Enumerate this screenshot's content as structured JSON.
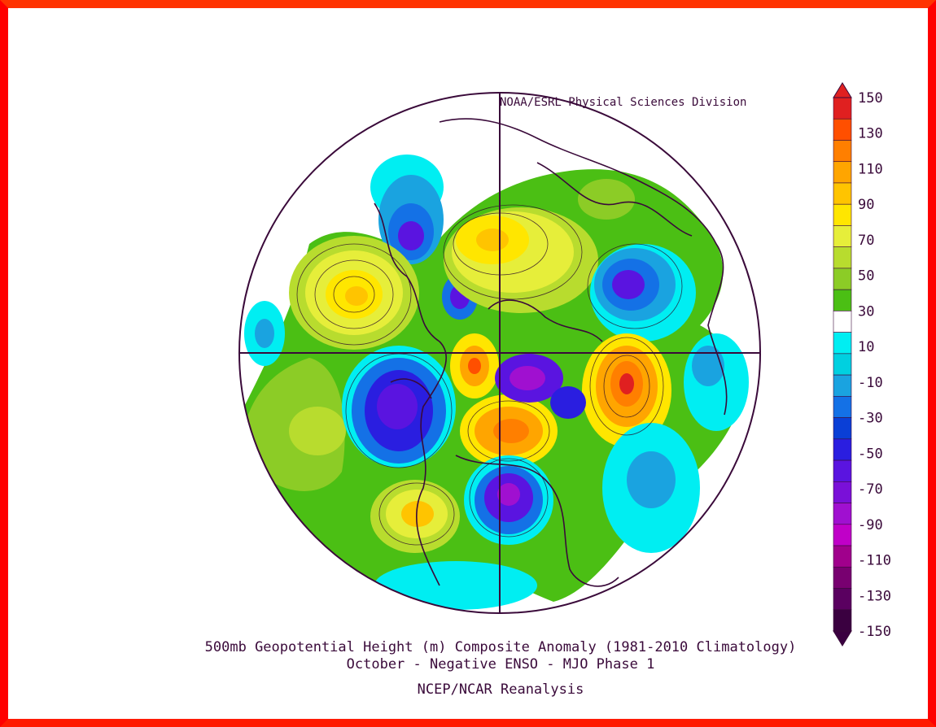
{
  "source_credit": "NOAA/ESRL Physical Sciences Division",
  "title_line1": "500mb Geopotential Height (m) Composite Anomaly (1981-2010 Climatology)",
  "title_line2": "October - Negative ENSO - MJO Phase 1",
  "title_line3": "NCEP/NCAR Reanalysis",
  "colorbar": {
    "min": -150,
    "max": 150,
    "labels": [
      "150",
      "130",
      "110",
      "90",
      "70",
      "50",
      "30",
      "10",
      "-10",
      "-30",
      "-50",
      "-70",
      "-90",
      "-110",
      "-130",
      "-150"
    ],
    "colors": [
      "#e02020",
      "#ff4f00",
      "#ff7f00",
      "#ffa500",
      "#ffc400",
      "#ffe600",
      "#e6ee3a",
      "#b8dc2e",
      "#8ccc26",
      "#4bbf14",
      "#ffffff",
      "#00eef2",
      "#00d0e0",
      "#1aa3e0",
      "#1471e6",
      "#0a3fd6",
      "#2a1ee0",
      "#5a14e0",
      "#7a10d8",
      "#a010d0",
      "#c000c8",
      "#a0008c",
      "#780070",
      "#5a0060",
      "#3a0040"
    ],
    "colors_note_order": "top-to-bottom"
  },
  "colors": {
    "border": "#ff0000",
    "outline": "#3a0a3a"
  }
}
